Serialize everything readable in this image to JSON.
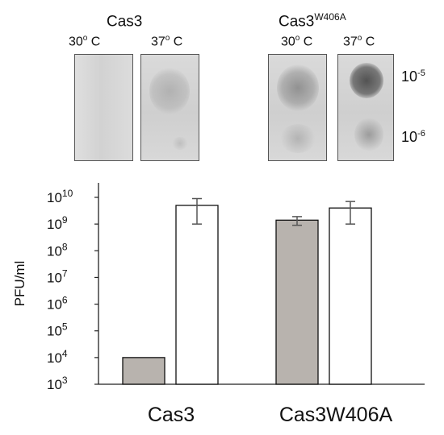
{
  "panels": {
    "groups": [
      {
        "name": "Cas3",
        "superscript": ""
      },
      {
        "name": "Cas3",
        "superscript": "W406A"
      }
    ],
    "temperatures": [
      "30",
      "37"
    ],
    "degree_symbol": "o",
    "temp_unit": " C",
    "dilutions": [
      {
        "base": "10",
        "exponent": "-5"
      },
      {
        "base": "10",
        "exponent": "-6"
      }
    ]
  },
  "chart_data": {
    "type": "bar",
    "categories": [
      "Cas3",
      "Cas3W406A"
    ],
    "series": [
      {
        "name": "30° C",
        "values": [
          10000,
          1400000000
        ],
        "error": [
          0,
          500000000
        ],
        "color": "#b8b3ae"
      },
      {
        "name": "37° C",
        "values": [
          5000000000,
          4000000000
        ],
        "error": [
          4000000000,
          3000000000
        ],
        "color": "#ffffff"
      }
    ],
    "ylabel": "PFU/ml",
    "yscale": "log",
    "ylim": [
      1000,
      10000000000
    ],
    "yticks": [
      {
        "base": "10",
        "exp": "3"
      },
      {
        "base": "10",
        "exp": "4"
      },
      {
        "base": "10",
        "exp": "5"
      },
      {
        "base": "10",
        "exp": "6"
      },
      {
        "base": "10",
        "exp": "7"
      },
      {
        "base": "10",
        "exp": "8"
      },
      {
        "base": "10",
        "exp": "9"
      },
      {
        "base": "10",
        "exp": "10"
      }
    ],
    "grid": false,
    "legend": "none"
  }
}
